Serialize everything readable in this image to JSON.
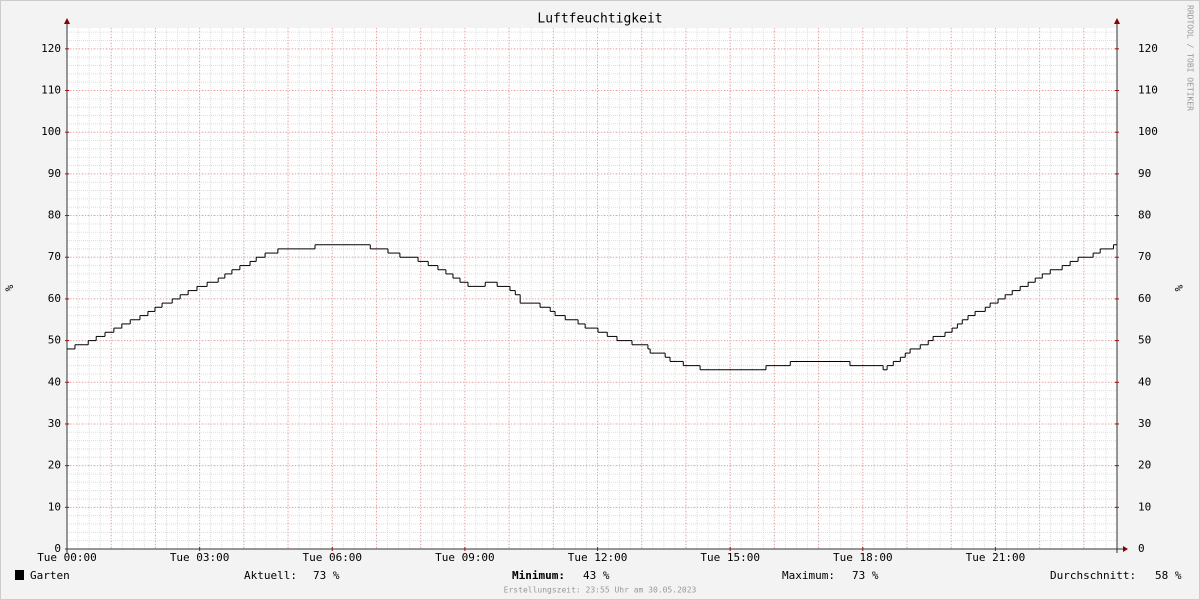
{
  "chart_data": {
    "type": "line",
    "title": "Luftfeuchtigkeit",
    "y_label": "%",
    "watermark": "RRDTOOL / TOBI OETIKER",
    "xlim": [
      0,
      23.75
    ],
    "xticks": [
      {
        "value": 0,
        "label": "Tue 00:00"
      },
      {
        "value": 3,
        "label": "Tue 03:00"
      },
      {
        "value": 6,
        "label": "Tue 06:00"
      },
      {
        "value": 9,
        "label": "Tue 09:00"
      },
      {
        "value": 12,
        "label": "Tue 12:00"
      },
      {
        "value": 15,
        "label": "Tue 15:00"
      },
      {
        "value": 18,
        "label": "Tue 18:00"
      },
      {
        "value": 21,
        "label": "Tue 21:00"
      }
    ],
    "ylim": [
      0,
      125
    ],
    "yticks": [
      0,
      10,
      20,
      30,
      40,
      50,
      60,
      70,
      80,
      90,
      100,
      110,
      120
    ],
    "grid": true,
    "series": [
      {
        "name": "Garten",
        "color": "#000000",
        "x": [
          0,
          0.18,
          0.48,
          0.66,
          0.86,
          1.06,
          1.24,
          1.43,
          1.65,
          1.83,
          1.99,
          2.15,
          2.38,
          2.56,
          2.74,
          2.94,
          3.17,
          3.42,
          3.57,
          3.73,
          3.91,
          4.14,
          4.28,
          4.48,
          4.77,
          5.61,
          6.86,
          7.26,
          7.53,
          7.94,
          8.17,
          8.39,
          8.57,
          8.73,
          8.89,
          9.07,
          9.46,
          9.73,
          10.02,
          10.14,
          10.25,
          10.7,
          10.93,
          11.04,
          11.27,
          11.56,
          11.72,
          12.01,
          12.22,
          12.44,
          12.78,
          13.14,
          13.19,
          13.53,
          13.64,
          13.94,
          14.32,
          15.81,
          16.36,
          17.71,
          18.46,
          18.55,
          18.69,
          18.85,
          18.96,
          19.07,
          19.3,
          19.48,
          19.59,
          19.86,
          20.02,
          20.14,
          20.25,
          20.38,
          20.54,
          20.77,
          20.88,
          21.06,
          21.22,
          21.38,
          21.56,
          21.74,
          21.9,
          22.06,
          22.24,
          22.51,
          22.69,
          22.87,
          23.21,
          23.37,
          23.67
        ],
        "values": [
          48,
          49,
          50,
          51,
          52,
          53,
          54,
          55,
          56,
          57,
          58,
          59,
          60,
          61,
          62,
          63,
          64,
          65,
          66,
          67,
          68,
          69,
          70,
          71,
          72,
          73,
          72,
          71,
          70,
          69,
          68,
          67,
          66,
          65,
          64,
          63,
          64,
          63,
          62,
          61,
          59,
          58,
          57,
          56,
          55,
          54,
          53,
          52,
          51,
          50,
          49,
          48,
          47,
          46,
          45,
          44,
          43,
          44,
          45,
          44,
          43,
          44,
          45,
          46,
          47,
          48,
          49,
          50,
          51,
          52,
          53,
          54,
          55,
          56,
          57,
          58,
          59,
          60,
          61,
          62,
          63,
          64,
          65,
          66,
          67,
          68,
          69,
          70,
          71,
          72,
          73
        ]
      }
    ],
    "legend_stats": [
      {
        "name": "Aktuell:",
        "value": 73,
        "value_label": "73 %"
      },
      {
        "name": "Minimum:",
        "value": 43,
        "value_label": "43 %"
      },
      {
        "name": "Maximum:",
        "value": 73,
        "value_label": "73 %"
      },
      {
        "name": "Durchschnitt:",
        "value": 58,
        "value_label": "58 %"
      }
    ],
    "footer": "Erstellungszeit: 23:55 Uhr am 30.05.2023"
  }
}
